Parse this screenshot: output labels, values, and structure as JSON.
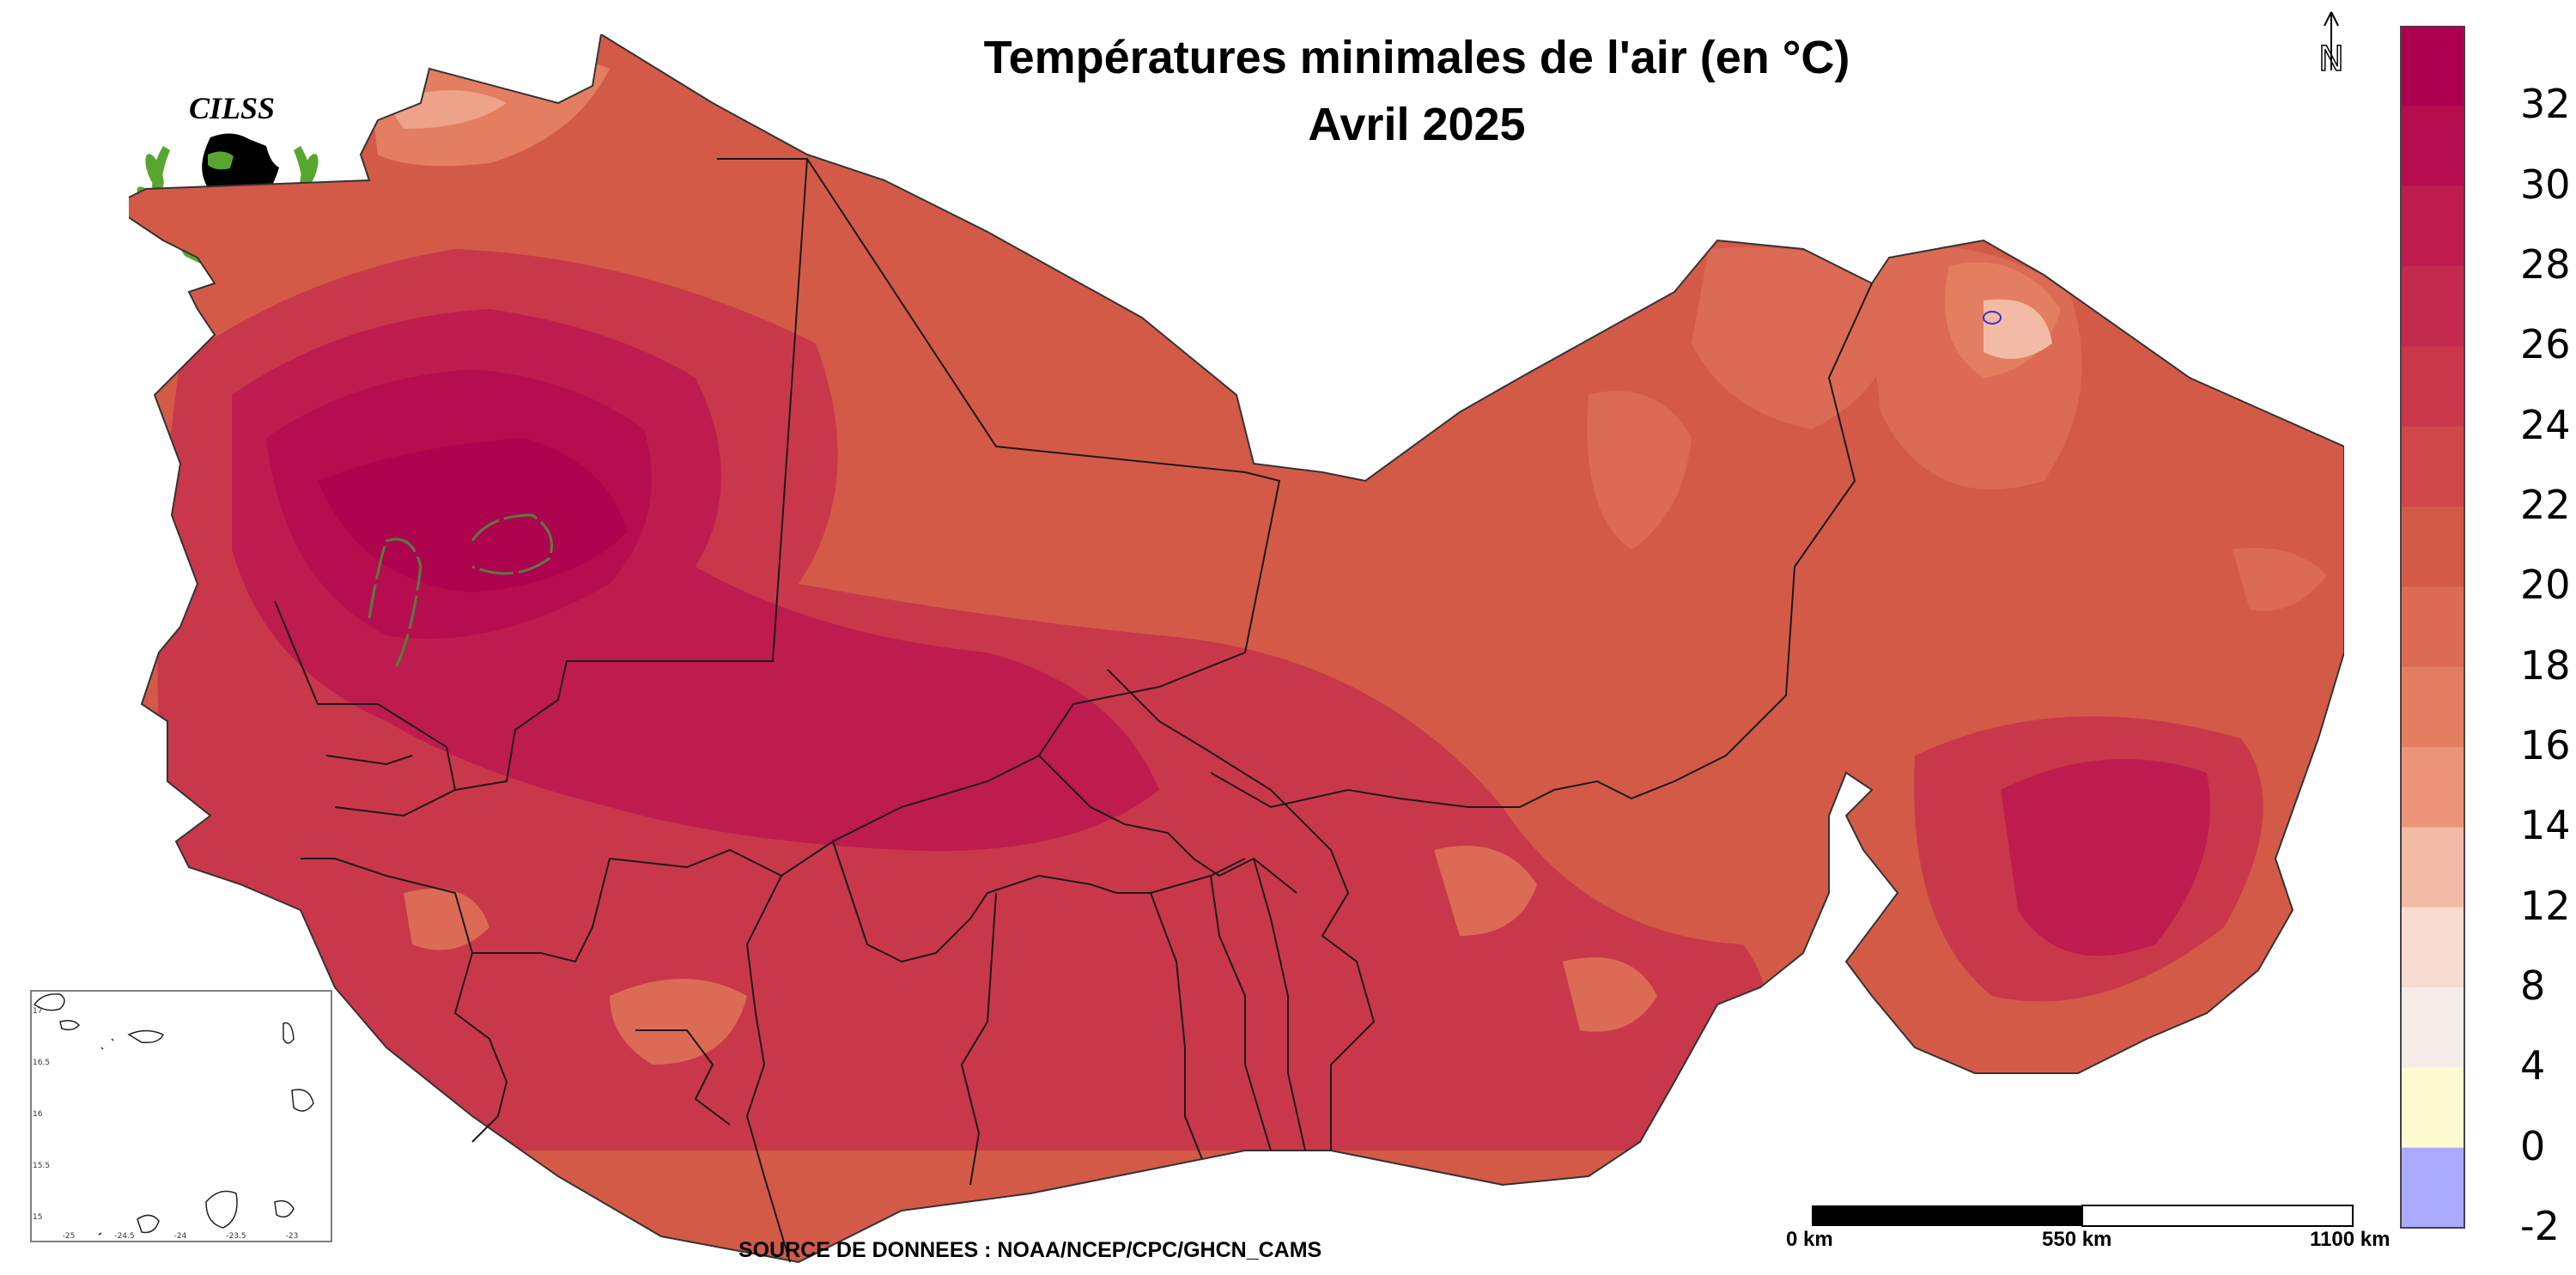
{
  "title_line1": "Températures minimales de l'air (en °C)",
  "title_line2": "Avril 2025",
  "logo_text": "CILSS",
  "north_label": "N",
  "source": "SOURCE DE DONNEES : NOAA/NCEP/CPC/GHCN_CAMS",
  "scale_bar": {
    "labels": [
      "0 km",
      "550 km",
      "1100 km"
    ]
  },
  "colorbar": {
    "ticks": [
      "32",
      "30",
      "28",
      "26",
      "24",
      "22",
      "20",
      "18",
      "16",
      "14",
      "12",
      "8",
      "4",
      "0",
      "-2"
    ],
    "colors": [
      "#ab004f",
      "#b60d4f",
      "#be1c4f",
      "#c22a4e",
      "#c9384a",
      "#d0484a",
      "#d45a48",
      "#dc6b55",
      "#e47e60",
      "#ec9478",
      "#f3bba6",
      "#f8dccf",
      "#f5ece6",
      "#fdfbd0",
      "#aaaaff"
    ]
  },
  "inset": {
    "x_ticks": [
      "-25",
      "-24.5",
      "-24",
      "-23.5",
      "-23"
    ],
    "y_ticks": [
      "17",
      "16.5",
      "16",
      "15.5",
      "15"
    ]
  },
  "map_colors": {
    "base": "#d45a48",
    "warm1": "#c9384a",
    "warm2": "#be1c4f",
    "hot": "#b60d4f",
    "hottest": "#ab004f",
    "cool1": "#dc6b55",
    "cool2": "#e47e60",
    "cool3": "#f3bba6",
    "border": "#1a1a1a"
  }
}
